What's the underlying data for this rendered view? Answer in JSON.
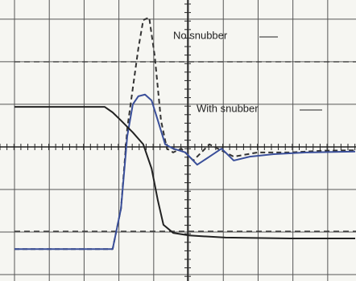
{
  "chart_data": {
    "type": "line",
    "annotations": [
      "No snubber",
      "With snubber"
    ],
    "xlim": [
      0,
      9.79
    ],
    "ylim": [
      -3.15,
      3.45
    ],
    "xticks": [
      0,
      1,
      2,
      3,
      4,
      5,
      6,
      7,
      8,
      9
    ],
    "yticks": [
      -3,
      -2,
      -1,
      0,
      1,
      2,
      3
    ],
    "grid": true,
    "series": [
      {
        "color": "#333333",
        "dashed": true,
        "x": [
          0,
          2.82,
          3.06,
          3.24,
          3.4,
          3.56,
          3.7,
          3.87,
          4.03,
          4.21,
          4.38,
          4.56,
          4.79,
          5.14,
          5.6,
          6.3,
          6.99,
          7.92,
          8.84,
          9.79
        ],
        "values": [
          -2.4,
          -2.4,
          -1.45,
          0.43,
          1.38,
          2.32,
          2.98,
          3.04,
          2.13,
          0.62,
          -0.04,
          -0.13,
          -0.04,
          -0.32,
          0.06,
          -0.23,
          -0.13,
          -0.13,
          -0.09,
          -0.08
        ]
      },
      {
        "color": "#3a4f9a",
        "dashed": false,
        "x": [
          0,
          2.82,
          3.06,
          3.24,
          3.4,
          3.56,
          3.75,
          3.94,
          4.12,
          4.33,
          4.56,
          4.91,
          5.25,
          5.6,
          5.95,
          6.3,
          6.76,
          7.45,
          8.38,
          9.79
        ],
        "values": [
          -2.4,
          -2.4,
          -1.45,
          0.25,
          1.0,
          1.19,
          1.23,
          1.09,
          0.62,
          0.06,
          -0.04,
          -0.13,
          -0.42,
          -0.23,
          -0.04,
          -0.32,
          -0.23,
          -0.17,
          -0.13,
          -0.11
        ]
      },
      {
        "color": "#222222",
        "dashed": false,
        "x": [
          0,
          2.59,
          2.82,
          3.06,
          3.4,
          3.7,
          3.94,
          4.12,
          4.28,
          4.56,
          5.02,
          6.06,
          7.92,
          9.79
        ],
        "values": [
          0.94,
          0.94,
          0.81,
          0.62,
          0.34,
          0.06,
          -0.51,
          -1.26,
          -1.83,
          -2.02,
          -2.08,
          -2.13,
          -2.15,
          -2.15
        ]
      }
    ]
  }
}
